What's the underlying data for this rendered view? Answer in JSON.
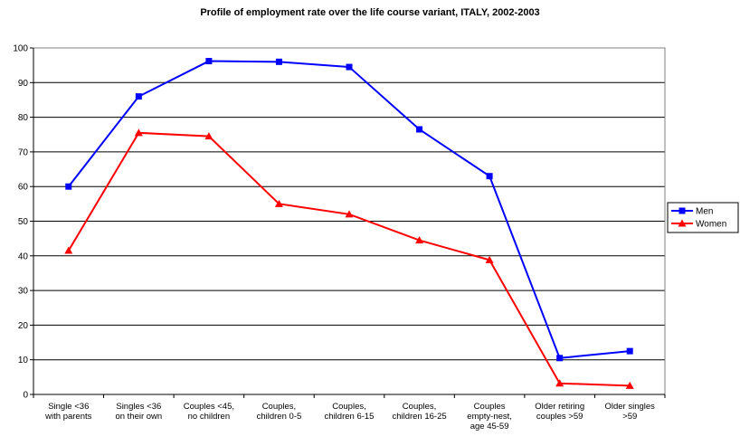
{
  "chart_data": {
    "type": "line",
    "title": "Profile of employment rate over the life course variant, ITALY, 2002-2003",
    "categories": [
      "Single <36\nwith parents",
      "Singles <36\non their own",
      "Couples <45,\nno children",
      "Couples,\nchildren 0-5",
      "Couples,\nchildren 6-15",
      "Couples,\nchildren 16-25",
      "Couples\nempty-nest,\nage 45-59",
      "Older retiring\ncouples >59",
      "Older singles\n>59"
    ],
    "series": [
      {
        "name": "Men",
        "color": "#0000ff",
        "marker": "square",
        "values": [
          60,
          86,
          96.2,
          96,
          94.5,
          76.5,
          63,
          10.5,
          12.5
        ]
      },
      {
        "name": "Women",
        "color": "#ff0000",
        "marker": "triangle",
        "values": [
          41.5,
          75.5,
          74.5,
          55,
          52,
          44.5,
          38.8,
          3.2,
          2.5
        ]
      }
    ],
    "ylim": [
      0,
      100
    ],
    "yticks": [
      0,
      10,
      20,
      30,
      40,
      50,
      60,
      70,
      80,
      90,
      100
    ],
    "grid": true,
    "legend": "right"
  }
}
